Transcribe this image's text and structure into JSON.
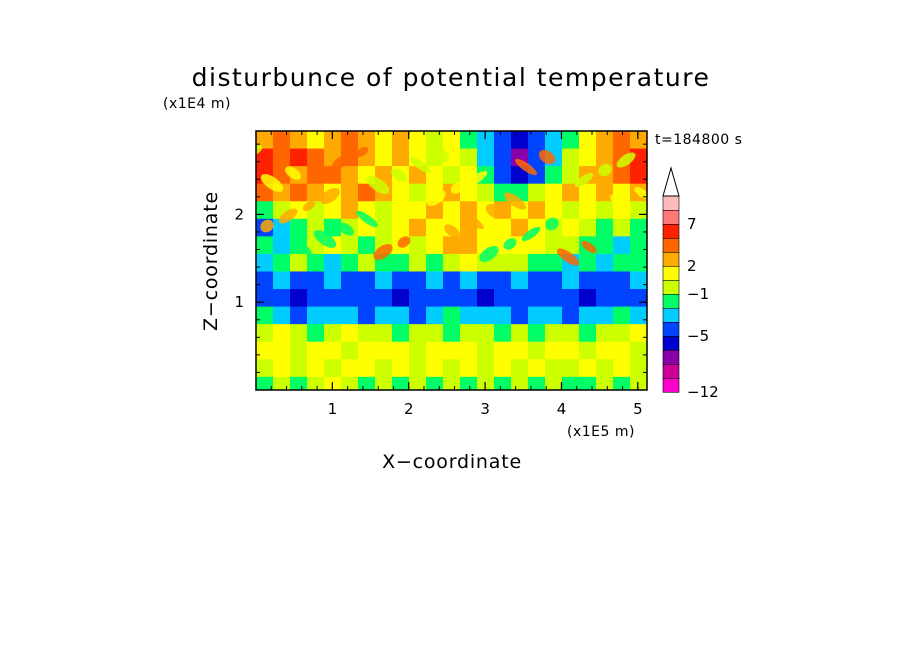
{
  "chart_data": {
    "type": "heatmap",
    "title": "disturbunce of potential temperature",
    "time_label": "t=184800 s",
    "xlabel": "X−coordinate",
    "ylabel": "Z−coordinate",
    "x_unit": "(x1E5 m)",
    "y_unit": "(x1E4 m)",
    "xlim": [
      0,
      5.12
    ],
    "ylim": [
      0,
      2.95
    ],
    "x_ticks": [
      {
        "value": 1,
        "label": "1"
      },
      {
        "value": 2,
        "label": "2"
      },
      {
        "value": 3,
        "label": "3"
      },
      {
        "value": 4,
        "label": "4"
      },
      {
        "value": 5,
        "label": "5"
      }
    ],
    "y_ticks": [
      {
        "value": 1,
        "label": "1"
      },
      {
        "value": 2,
        "label": "2"
      }
    ],
    "colorbar": {
      "bands": [
        {
          "color": "#ff00cc"
        },
        {
          "color": "#cc0099"
        },
        {
          "color": "#8800aa"
        },
        {
          "color": "#0000cc"
        },
        {
          "color": "#0044ff"
        },
        {
          "color": "#00ccff"
        },
        {
          "color": "#00ff66"
        },
        {
          "color": "#ccff00"
        },
        {
          "color": "#ffff00"
        },
        {
          "color": "#ffaa00"
        },
        {
          "color": "#ff6600"
        },
        {
          "color": "#ff2200"
        },
        {
          "color": "#ff7777"
        },
        {
          "color": "#ffbbbb"
        }
      ],
      "overflow_arrow_color": "#ffffff",
      "labels": [
        {
          "value": "-12",
          "label": "−12",
          "band_edge": 0
        },
        {
          "value": "-5",
          "label": "−5",
          "band_edge": 4
        },
        {
          "value": "-1",
          "label": "−1",
          "band_edge": 7
        },
        {
          "value": "2",
          "label": "2",
          "band_edge": 9
        },
        {
          "value": "7",
          "label": "7",
          "band_edge": 12
        }
      ]
    },
    "field_rows": [
      {
        "z": 2.85,
        "pattern": [
          9,
          10,
          9,
          8,
          9,
          10,
          9,
          8,
          9,
          8,
          7,
          8,
          6,
          5,
          4,
          3,
          4,
          5,
          6,
          8,
          9,
          10,
          9
        ]
      },
      {
        "z": 2.65,
        "pattern": [
          11,
          10,
          11,
          10,
          9,
          10,
          9,
          8,
          9,
          8,
          7,
          8,
          7,
          5,
          4,
          2,
          4,
          5,
          7,
          8,
          9,
          10,
          11
        ]
      },
      {
        "z": 2.45,
        "pattern": [
          11,
          10,
          9,
          10,
          10,
          9,
          8,
          9,
          8,
          9,
          8,
          7,
          8,
          6,
          4,
          3,
          4,
          6,
          7,
          9,
          9,
          10,
          11
        ]
      },
      {
        "z": 2.25,
        "pattern": [
          10,
          9,
          10,
          9,
          8,
          9,
          10,
          9,
          8,
          7,
          8,
          9,
          8,
          7,
          6,
          6,
          7,
          8,
          9,
          8,
          9,
          8,
          9
        ]
      },
      {
        "z": 2.05,
        "pattern": [
          6,
          7,
          8,
          7,
          8,
          9,
          8,
          7,
          8,
          8,
          9,
          8,
          9,
          8,
          9,
          8,
          9,
          8,
          7,
          8,
          7,
          8,
          7
        ]
      },
      {
        "z": 1.85,
        "pattern": [
          4,
          5,
          6,
          7,
          6,
          7,
          8,
          7,
          8,
          9,
          8,
          8,
          9,
          8,
          8,
          9,
          8,
          7,
          8,
          7,
          6,
          7,
          6
        ]
      },
      {
        "z": 1.65,
        "pattern": [
          6,
          5,
          6,
          7,
          8,
          7,
          6,
          7,
          8,
          7,
          8,
          9,
          9,
          8,
          8,
          8,
          8,
          7,
          7,
          6,
          6,
          5,
          6
        ]
      },
      {
        "z": 1.45,
        "pattern": [
          5,
          6,
          7,
          6,
          5,
          6,
          7,
          6,
          6,
          7,
          6,
          7,
          8,
          7,
          7,
          7,
          6,
          6,
          5,
          6,
          5,
          6,
          6
        ]
      },
      {
        "z": 1.25,
        "pattern": [
          4,
          5,
          4,
          4,
          5,
          4,
          4,
          5,
          4,
          4,
          5,
          4,
          5,
          4,
          4,
          5,
          4,
          4,
          5,
          4,
          4,
          4,
          5
        ]
      },
      {
        "z": 1.05,
        "pattern": [
          4,
          4,
          3,
          4,
          4,
          4,
          4,
          4,
          3,
          4,
          4,
          4,
          4,
          3,
          4,
          4,
          4,
          4,
          4,
          3,
          4,
          4,
          4
        ]
      },
      {
        "z": 0.85,
        "pattern": [
          6,
          5,
          4,
          5,
          5,
          5,
          4,
          5,
          5,
          4,
          5,
          6,
          5,
          5,
          5,
          4,
          5,
          5,
          4,
          5,
          5,
          6,
          5
        ]
      },
      {
        "z": 0.65,
        "pattern": [
          7,
          8,
          7,
          6,
          7,
          8,
          7,
          7,
          6,
          7,
          7,
          6,
          7,
          7,
          6,
          7,
          6,
          7,
          7,
          6,
          7,
          7,
          8
        ]
      },
      {
        "z": 0.45,
        "pattern": [
          8,
          8,
          7,
          8,
          8,
          7,
          8,
          8,
          8,
          7,
          8,
          8,
          8,
          7,
          8,
          8,
          7,
          8,
          8,
          7,
          8,
          8,
          7
        ]
      },
      {
        "z": 0.25,
        "pattern": [
          7,
          8,
          7,
          8,
          7,
          8,
          8,
          7,
          8,
          7,
          8,
          7,
          8,
          7,
          8,
          7,
          8,
          7,
          7,
          8,
          7,
          8,
          7
        ]
      },
      {
        "z": 0.05,
        "pattern": [
          6,
          7,
          6,
          7,
          8,
          7,
          6,
          7,
          6,
          7,
          6,
          7,
          6,
          7,
          6,
          7,
          6,
          7,
          6,
          6,
          7,
          6,
          7
        ]
      }
    ]
  }
}
